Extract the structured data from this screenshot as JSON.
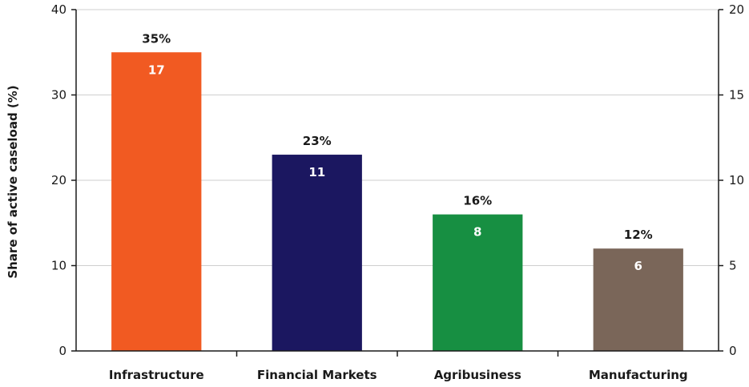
{
  "chart_data": {
    "type": "bar",
    "categories": [
      "Infrastructure",
      "Financial Markets",
      "Agribusiness",
      "Manufacturing"
    ],
    "series": [
      {
        "values": [
          35,
          23,
          16,
          12
        ],
        "labels": [
          "35%",
          "23%",
          "16%",
          "12%"
        ]
      },
      {
        "values": [
          17,
          11,
          8,
          6
        ]
      }
    ],
    "colors": [
      "#f15a22",
      "#1b1760",
      "#178f42",
      "#7a6659"
    ],
    "ylabel": "Share of active caseload (%)",
    "ylim": [
      0,
      40
    ],
    "yticks": [
      "0",
      "10",
      "20",
      "30",
      "40"
    ],
    "y2lim": [
      0,
      20
    ],
    "y2ticks": [
      "0",
      "5",
      "10",
      "15",
      "20"
    ],
    "grid": "horizontal"
  }
}
